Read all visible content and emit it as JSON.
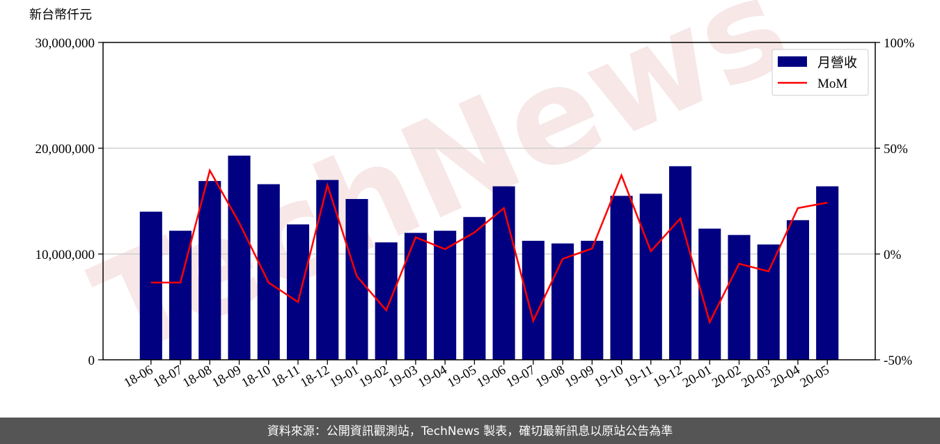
{
  "chart_data": {
    "type": "bar+line",
    "watermark": "TechNews",
    "y_label": "新台幣仟元",
    "categories": [
      "18-06",
      "18-07",
      "18-08",
      "18-09",
      "18-10",
      "18-11",
      "18-12",
      "19-01",
      "19-02",
      "19-03",
      "19-04",
      "19-05",
      "19-06",
      "19-07",
      "19-08",
      "19-09",
      "19-10",
      "19-11",
      "19-12",
      "20-01",
      "20-02",
      "20-03",
      "20-04",
      "20-05"
    ],
    "series": [
      {
        "name": "月營收",
        "type": "bar",
        "color": "#000080",
        "values": [
          14000000,
          12200000,
          16900000,
          19300000,
          16600000,
          12800000,
          17000000,
          15200000,
          11100000,
          12000000,
          12200000,
          13500000,
          16400000,
          11250000,
          11000000,
          11250000,
          15500000,
          15700000,
          18300000,
          12400000,
          11800000,
          10900000,
          13200000,
          16400000
        ]
      },
      {
        "name": "MoM",
        "type": "line",
        "axis": "y2",
        "color": "#ff0000",
        "values": [
          -13.5,
          -13.5,
          39.5,
          14.8,
          -13.5,
          -22.7,
          32.6,
          -10.5,
          -26.6,
          7.9,
          2.3,
          10.2,
          21.7,
          -31.6,
          -2.3,
          2.6,
          37.2,
          1.3,
          16.8,
          -32.2,
          -4.6,
          -8.2,
          21.7,
          24.3
        ]
      }
    ],
    "ylim": [
      0,
      30000000
    ],
    "yticks": [
      0,
      {
        "value": 10000000,
        "label": "10,000,000"
      },
      {
        "value": 20000000,
        "label": "20,000,000"
      },
      {
        "value": 30000000,
        "label": "30,000,000"
      }
    ],
    "y2lim": [
      -50,
      100
    ],
    "y2ticks": [
      {
        "value": -50,
        "label": "-50%"
      },
      {
        "value": 0,
        "label": "0%"
      },
      {
        "value": 50,
        "label": "50%"
      },
      {
        "value": 100,
        "label": "100%"
      }
    ],
    "grid": true,
    "legend": "upper right",
    "footer": "資料來源：公開資訊觀測站，TechNews 製表，確切最新訊息以原站公告為準"
  }
}
